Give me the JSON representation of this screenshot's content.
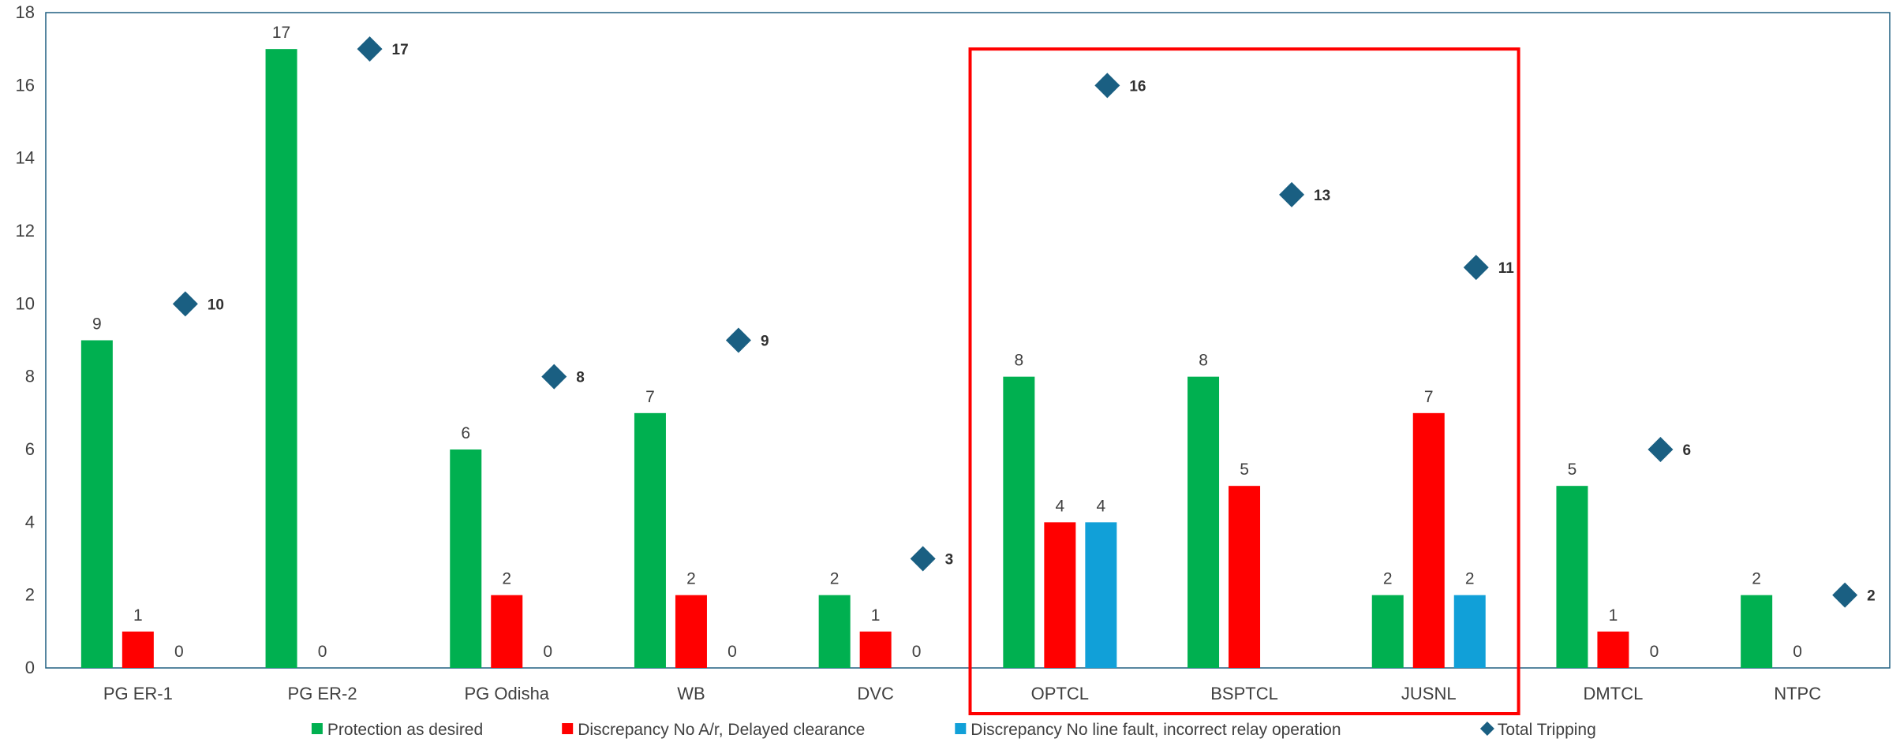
{
  "chart_data": {
    "type": "bar",
    "categories": [
      "PG ER-1",
      "PG ER-2",
      "PG Odisha",
      "WB",
      "DVC",
      "OPTCL",
      "BSPTCL",
      "JUSNL",
      "DMTCL",
      "NTPC"
    ],
    "series": [
      {
        "name": "Protection as desired",
        "color": "#00b050",
        "values": [
          9,
          17,
          6,
          7,
          2,
          8,
          8,
          2,
          5,
          2
        ]
      },
      {
        "name": "Discrepancy No A/r, Delayed clearance",
        "color": "#ff0000",
        "values": [
          1,
          0,
          2,
          2,
          1,
          4,
          5,
          7,
          1,
          0
        ]
      },
      {
        "name": "Discrepancy No line fault, incorrect relay operation",
        "color": "#11a0d8",
        "values": [
          0,
          null,
          0,
          0,
          0,
          4,
          null,
          2,
          0,
          null
        ]
      }
    ],
    "markers": {
      "name": "Total Tripping",
      "color": "#1a5f82",
      "values": [
        10,
        17,
        8,
        9,
        3,
        16,
        13,
        11,
        6,
        2
      ]
    },
    "ylim": [
      0,
      18
    ],
    "yticks": [
      0,
      2,
      4,
      6,
      8,
      10,
      12,
      14,
      16,
      18
    ],
    "grid": false,
    "legend": "bottom",
    "highlight": {
      "categories": [
        "OPTCL",
        "BSPTCL",
        "JUSNL"
      ],
      "color": "#ff0000"
    }
  }
}
